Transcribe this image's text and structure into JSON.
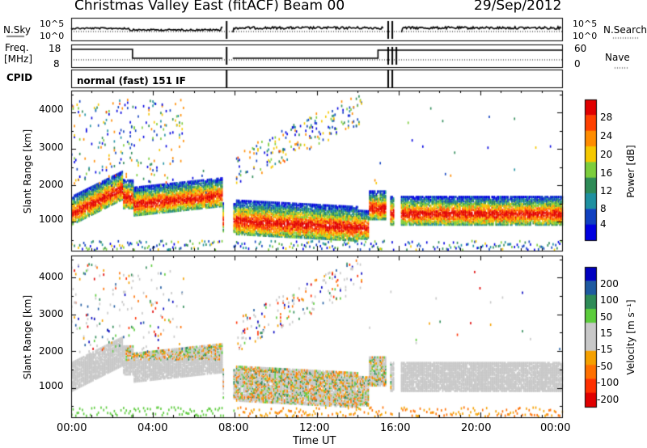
{
  "header": {
    "title": "Christmas Valley East (fitACF)",
    "beam": "Beam 00",
    "date": "29/Sep/2012"
  },
  "panels": {
    "nsky_label": "N.Sky",
    "nsky_ticks": [
      "10^5",
      "10^0"
    ],
    "nsearch_label": "N.Search",
    "nsearch_ticks": [
      "10^5",
      "10^0"
    ],
    "freq_label": "Freq.",
    "freq_unit": "[MHz]",
    "freq_ticks": [
      "18",
      "8"
    ],
    "nave_label": "Nave",
    "nave_ticks": [
      "60",
      "0"
    ],
    "cpid_label": "CPID",
    "cpid_text": "normal (fast) 151 IF"
  },
  "chart_data": [
    {
      "type": "heatmap",
      "title": "",
      "xlabel": "",
      "ylabel": "Slant Range [km]",
      "xlim": [
        "00:00",
        "24:00"
      ],
      "ylim": [
        200,
        4600
      ],
      "y_ticks": [
        1000,
        2000,
        3000,
        4000
      ],
      "colorbar": {
        "label": "Power [dB]",
        "ticks": [
          "28",
          "24",
          "20",
          "16",
          "12",
          "8",
          "4"
        ],
        "colors": [
          "#e00000",
          "#ff4000",
          "#ff8c00",
          "#f5c800",
          "#7ccd3c",
          "#2e8b57",
          "#1e90a0",
          "#1040c0",
          "#0000e0"
        ]
      },
      "notes": "Backscatter power vs UT and slant range; strong (red) band near 1000-1300 km most of the day; scattered echoes 2000-4000 km from 00:00-05:00 and 08:00-14:00; data gaps near 07:30 and 15:30."
    },
    {
      "type": "heatmap",
      "title": "",
      "xlabel": "Time UT",
      "ylabel": "Slant Range [km]",
      "xlim": [
        "00:00",
        "24:00"
      ],
      "ylim": [
        200,
        4600
      ],
      "y_ticks": [
        1000,
        2000,
        3000,
        4000
      ],
      "x_ticks": [
        "00:00",
        "04:00",
        "08:00",
        "12:00",
        "16:00",
        "20:00",
        "00:00"
      ],
      "colorbar": {
        "label": "Velocity [m s⁻¹]",
        "ticks": [
          "200",
          "100",
          "50",
          "15",
          "-15",
          "-50",
          "-100",
          "-200"
        ],
        "colors": [
          "#0000c0",
          "#1e5aa0",
          "#2e8b57",
          "#5ccc3c",
          "#c8c8c8",
          "#c8c8c8",
          "#f5a000",
          "#ff7000",
          "#ff3000",
          "#e00000"
        ]
      },
      "notes": "Line-of-sight velocity; ground scatter (grey) band 1000-2000 km; mixed positive/negative velocities elsewhere."
    }
  ],
  "time_ticks": [
    "00:00",
    "04:00",
    "08:00",
    "12:00",
    "16:00",
    "20:00",
    "00:00"
  ],
  "time_label": "Time UT"
}
